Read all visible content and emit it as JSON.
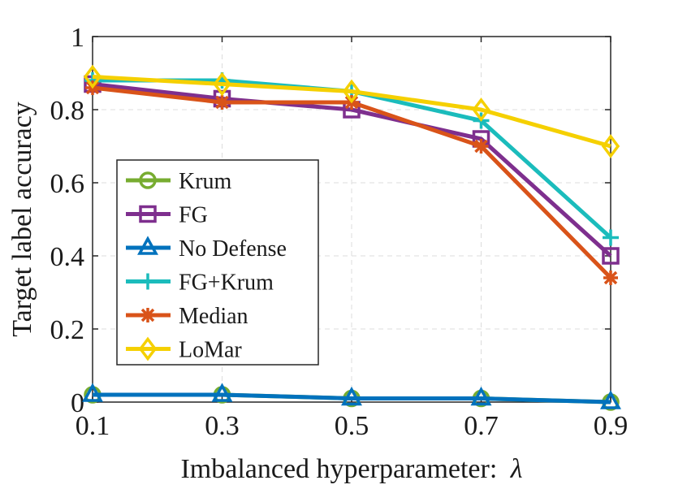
{
  "chart_data": {
    "type": "line",
    "title": "",
    "xlabel": "Imbalanced hyperparameter:",
    "xlabel_symbol": "λ",
    "ylabel": "Target label accuracy",
    "x": [
      0.1,
      0.3,
      0.5,
      0.7,
      0.9
    ],
    "xticks": [
      "0.1",
      "0.3",
      "0.5",
      "0.7",
      "0.9"
    ],
    "yticks": [
      "0",
      "0.2",
      "0.4",
      "0.6",
      "0.8",
      "1"
    ],
    "ytick_values": [
      0,
      0.2,
      0.4,
      0.6,
      0.8,
      1
    ],
    "xlim": [
      0.1,
      0.9
    ],
    "ylim": [
      0,
      1
    ],
    "grid": true,
    "legend_position": "left-middle",
    "series": [
      {
        "name": "Krum",
        "values": [
          0.02,
          0.02,
          0.01,
          0.01,
          0.0
        ],
        "color": "#77ac30",
        "marker": "circle"
      },
      {
        "name": "FG",
        "values": [
          0.87,
          0.83,
          0.8,
          0.72,
          0.4
        ],
        "color": "#7e2f8e",
        "marker": "square"
      },
      {
        "name": "No Defense",
        "values": [
          0.02,
          0.02,
          0.01,
          0.01,
          0.0
        ],
        "color": "#0072bd",
        "marker": "triangle"
      },
      {
        "name": "FG+Krum",
        "values": [
          0.88,
          0.88,
          0.85,
          0.77,
          0.45
        ],
        "color": "#1bbcbc",
        "marker": "plus"
      },
      {
        "name": "Median",
        "values": [
          0.86,
          0.82,
          0.82,
          0.7,
          0.34
        ],
        "color": "#d95319",
        "marker": "asterisk"
      },
      {
        "name": "LoMar",
        "values": [
          0.89,
          0.87,
          0.85,
          0.8,
          0.7
        ],
        "color": "#f5d000",
        "marker": "diamond"
      }
    ]
  }
}
